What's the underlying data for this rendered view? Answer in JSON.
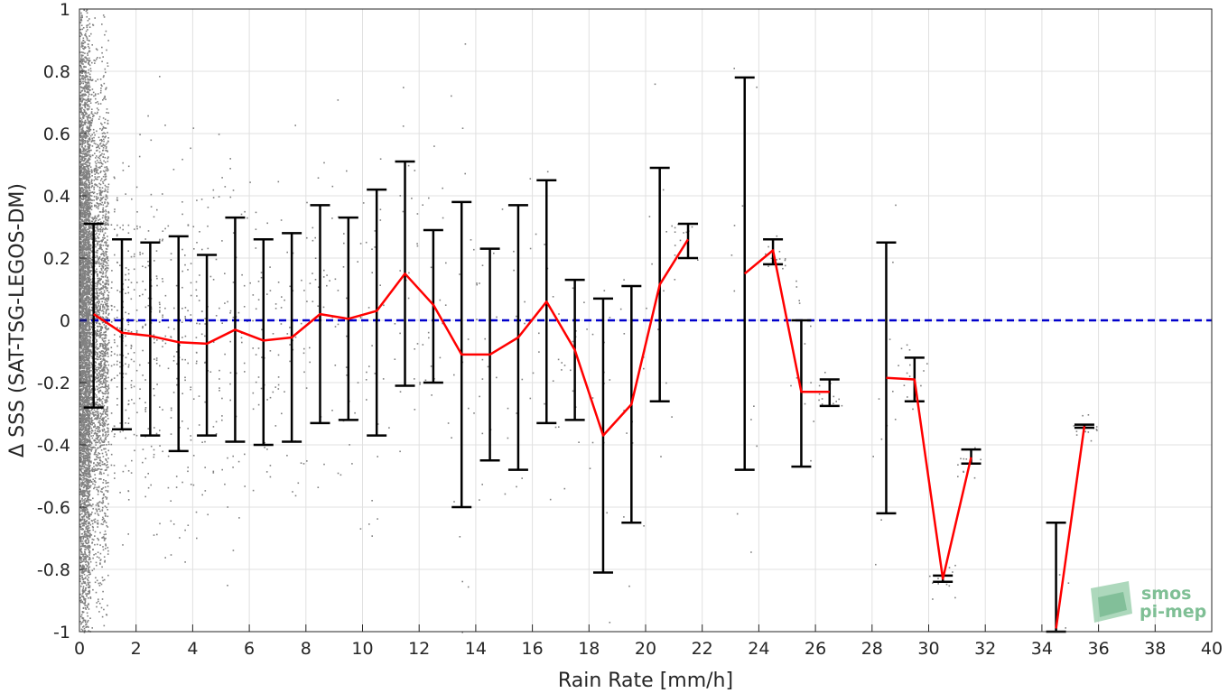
{
  "chart_data": {
    "type": "scatter",
    "title": "",
    "xlabel": "Rain Rate [mm/h]",
    "ylabel": "Δ SSS (SAT-TSG-LEGOS-DM)",
    "xlim": [
      0,
      40
    ],
    "ylim": [
      -1,
      1
    ],
    "x_ticks": [
      0,
      2,
      4,
      6,
      8,
      10,
      12,
      14,
      16,
      18,
      20,
      22,
      24,
      26,
      28,
      30,
      32,
      34,
      36,
      38,
      40
    ],
    "x_tick_labels": [
      "0",
      "2",
      "4",
      "6",
      "8",
      "10",
      "12",
      "14",
      "16",
      "18",
      "20",
      "22",
      "24",
      "26",
      "28",
      "30",
      "32",
      "34",
      "36",
      "38",
      "40"
    ],
    "y_ticks": [
      -1,
      -0.8,
      -0.6,
      -0.4,
      -0.2,
      0,
      0.2,
      0.4,
      0.6,
      0.8,
      1
    ],
    "y_tick_labels": [
      "-1",
      "-0.8",
      "-0.6",
      "-0.4",
      "-0.2",
      "0",
      "0.2",
      "0.4",
      "0.6",
      "0.8",
      "1"
    ],
    "grid": true,
    "colors": {
      "scatter": "#808080",
      "mean": "#ff0000",
      "errorbar": "#000000",
      "reference": "#0000cc",
      "grid": "#e0e0e0"
    },
    "reference_line": {
      "y": 0,
      "style": "dashed"
    },
    "binned": [
      {
        "x": 0.5,
        "mean": 0.02,
        "low": -0.28,
        "high": 0.31
      },
      {
        "x": 1.5,
        "mean": -0.04,
        "low": -0.35,
        "high": 0.26
      },
      {
        "x": 2.5,
        "mean": -0.05,
        "low": -0.37,
        "high": 0.25
      },
      {
        "x": 3.5,
        "mean": -0.07,
        "low": -0.42,
        "high": 0.27
      },
      {
        "x": 4.5,
        "mean": -0.075,
        "low": -0.37,
        "high": 0.21
      },
      {
        "x": 5.5,
        "mean": -0.03,
        "low": -0.39,
        "high": 0.33
      },
      {
        "x": 6.5,
        "mean": -0.065,
        "low": -0.4,
        "high": 0.26
      },
      {
        "x": 7.5,
        "mean": -0.055,
        "low": -0.39,
        "high": 0.28
      },
      {
        "x": 8.5,
        "mean": 0.02,
        "low": -0.33,
        "high": 0.37
      },
      {
        "x": 9.5,
        "mean": 0.005,
        "low": -0.32,
        "high": 0.33
      },
      {
        "x": 10.5,
        "mean": 0.03,
        "low": -0.37,
        "high": 0.42
      },
      {
        "x": 11.5,
        "mean": 0.15,
        "low": -0.21,
        "high": 0.51
      },
      {
        "x": 12.5,
        "mean": 0.05,
        "low": -0.2,
        "high": 0.29
      },
      {
        "x": 13.5,
        "mean": -0.11,
        "low": -0.6,
        "high": 0.38
      },
      {
        "x": 14.5,
        "mean": -0.11,
        "low": -0.45,
        "high": 0.23
      },
      {
        "x": 15.5,
        "mean": -0.055,
        "low": -0.48,
        "high": 0.37
      },
      {
        "x": 16.5,
        "mean": 0.06,
        "low": -0.33,
        "high": 0.45
      },
      {
        "x": 17.5,
        "mean": -0.095,
        "low": -0.32,
        "high": 0.13
      },
      {
        "x": 18.5,
        "mean": -0.37,
        "low": -0.81,
        "high": 0.07
      },
      {
        "x": 19.5,
        "mean": -0.27,
        "low": -0.65,
        "high": 0.11
      },
      {
        "x": 20.5,
        "mean": 0.115,
        "low": -0.26,
        "high": 0.49
      },
      {
        "x": 21.5,
        "mean": 0.26,
        "low": 0.2,
        "high": 0.31
      },
      {
        "x": 23.5,
        "mean": 0.15,
        "low": -0.48,
        "high": 0.78
      },
      {
        "x": 24.5,
        "mean": 0.225,
        "low": 0.18,
        "high": 0.26
      },
      {
        "x": 25.5,
        "mean": -0.23,
        "low": -0.47,
        "high": 0.0
      },
      {
        "x": 26.5,
        "mean": -0.23,
        "low": -0.275,
        "high": -0.19
      },
      {
        "x": 28.5,
        "mean": -0.185,
        "low": -0.62,
        "high": 0.25
      },
      {
        "x": 29.5,
        "mean": -0.19,
        "low": -0.26,
        "high": -0.12
      },
      {
        "x": 30.5,
        "mean": -0.83,
        "low": -0.84,
        "high": -0.82
      },
      {
        "x": 31.5,
        "mean": -0.44,
        "low": -0.46,
        "high": -0.415
      },
      {
        "x": 34.5,
        "mean": -0.99,
        "low": -1.0,
        "high": -0.65
      },
      {
        "x": 35.5,
        "mean": -0.34,
        "low": -0.345,
        "high": -0.335
      }
    ],
    "mean_line_segments": [
      [
        0.5,
        1.5,
        2.5,
        3.5,
        4.5,
        5.5,
        6.5,
        7.5,
        8.5,
        9.5,
        10.5,
        11.5,
        12.5,
        13.5,
        14.5,
        15.5,
        16.5,
        17.5,
        18.5,
        19.5,
        20.5,
        21.5
      ],
      [
        23.5,
        24.5,
        25.5,
        26.5
      ],
      [
        28.5,
        29.5,
        30.5,
        31.5
      ],
      [
        34.5,
        35.5
      ]
    ],
    "logo": {
      "line1": "smos",
      "line2": "pi-mep"
    }
  }
}
